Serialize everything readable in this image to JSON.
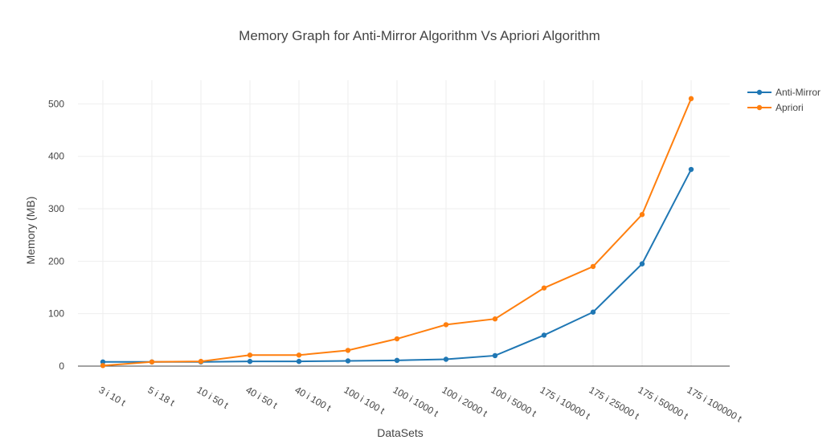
{
  "chart_data": {
    "type": "line",
    "title": "Memory Graph for Anti-Mirror Algorithm Vs Apriori Algorithm",
    "xlabel": "DataSets",
    "ylabel": "Memory (MB)",
    "categories": [
      "3 i 10 t",
      "5 i 18 t",
      "10 i 50 t",
      "40 i 50 t",
      "40 i 100 t",
      "100 i 100 t",
      "100 i 1000 t",
      "100 i 2000 t",
      "100 i 5000 t",
      "175 i 10000 t",
      "175 i 25000 t",
      "175 i 50000 t",
      "175 i 100000 t"
    ],
    "ylim": [
      0,
      545
    ],
    "yticks": [
      0,
      100,
      200,
      300,
      400,
      500
    ],
    "grid": true,
    "legend": "top-right",
    "series": [
      {
        "name": "Anti-Mirror",
        "color": "#1f77b4",
        "values": [
          8,
          8,
          8,
          9,
          9,
          10,
          11,
          13,
          20,
          59,
          103,
          195,
          375
        ]
      },
      {
        "name": "Apriori",
        "color": "#ff7f0e",
        "values": [
          1,
          8,
          9,
          21,
          21,
          30,
          52,
          79,
          90,
          149,
          190,
          289,
          510
        ]
      }
    ]
  }
}
